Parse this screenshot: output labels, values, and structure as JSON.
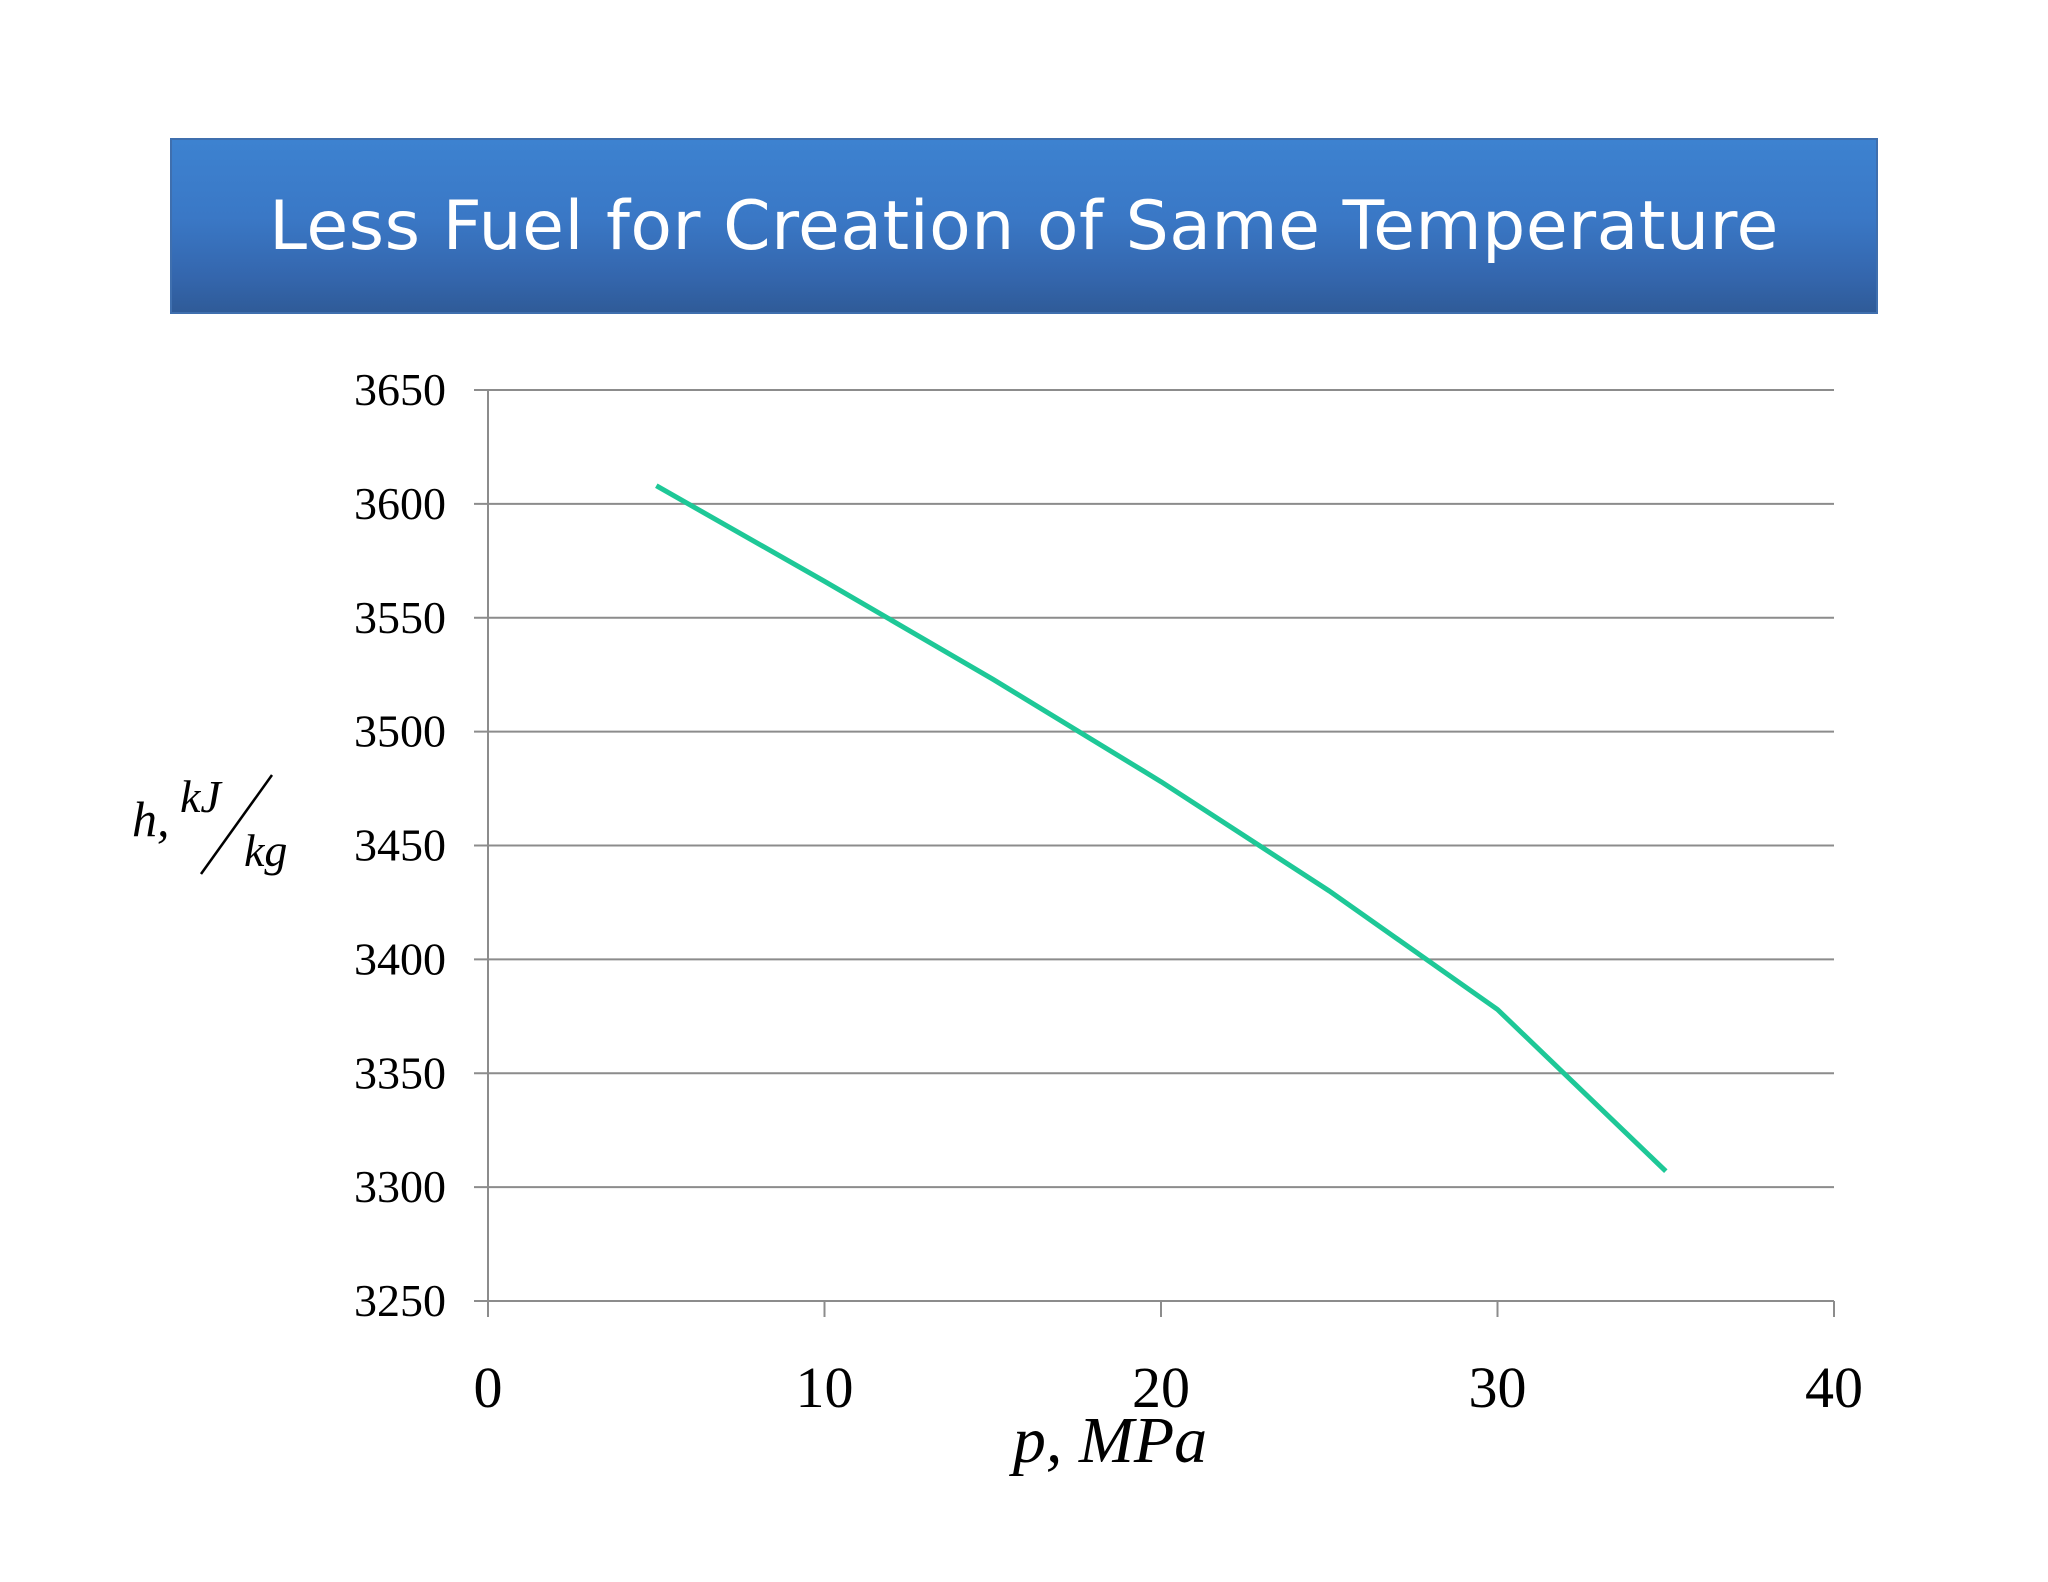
{
  "slide": {
    "title": "Less Fuel for Creation of Same Temperature"
  },
  "colors": {
    "title_bar": "#3a78c6",
    "line": "#1ec897",
    "grid": "#8c8c8c",
    "axis": "#8c8c8c"
  },
  "chart_data": {
    "type": "line",
    "title": "",
    "xlabel": "p, MPa",
    "ylabel": "h, kJ/kg",
    "ylabel_parts": {
      "symbol": "h,",
      "numerator": "kJ",
      "denominator": "kg"
    },
    "xlim": [
      0,
      40
    ],
    "ylim": [
      3250,
      3650
    ],
    "x_ticks": [
      0,
      10,
      20,
      30,
      40
    ],
    "y_ticks": [
      3250,
      3300,
      3350,
      3400,
      3450,
      3500,
      3550,
      3600,
      3650
    ],
    "grid": {
      "horizontal": true,
      "vertical": false
    },
    "legend": "none",
    "series": [
      {
        "x": [
          5,
          10,
          15,
          20,
          25,
          30,
          35
        ],
        "y": [
          3608,
          3566,
          3523,
          3478,
          3430,
          3378,
          3307
        ]
      }
    ]
  }
}
